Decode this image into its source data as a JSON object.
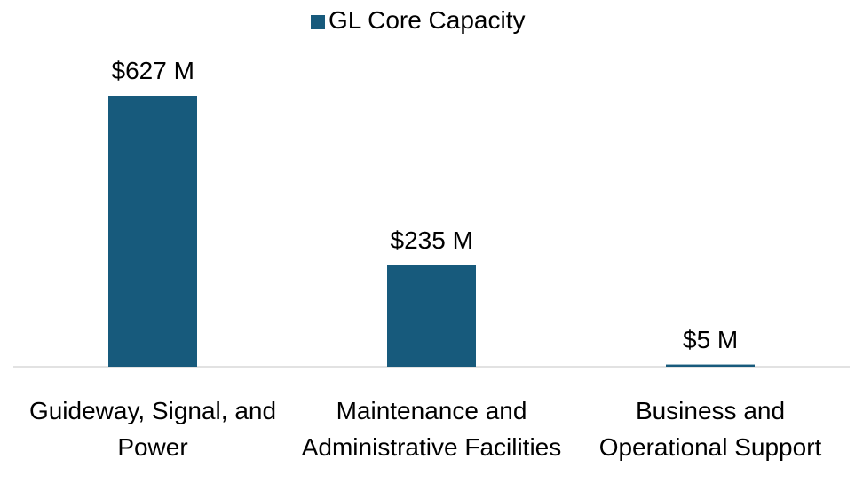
{
  "chart_data": {
    "type": "bar",
    "categories": [
      "Guideway, Signal, and Power",
      "Maintenance and Administrative Facilities",
      "Business and Operational Support"
    ],
    "series": [
      {
        "name": "GL Core Capacity",
        "color": "#175a7c",
        "values": [
          627,
          235,
          5
        ],
        "value_labels": [
          "$627 M",
          "$235 M",
          "$5 M"
        ]
      }
    ]
  }
}
